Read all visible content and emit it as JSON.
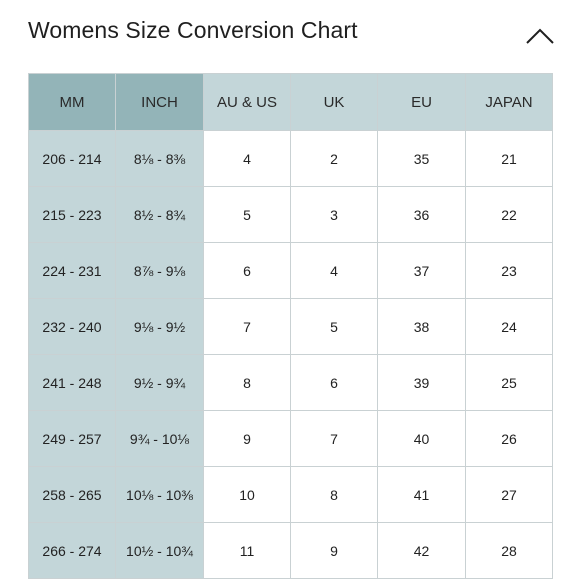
{
  "header": {
    "title": "Womens Size Conversion Chart",
    "collapse_icon": "chevron-up-icon"
  },
  "table": {
    "columns": [
      "MM",
      "INCH",
      "AU & US",
      "UK",
      "EU",
      "JAPAN"
    ],
    "rows": [
      {
        "mm": "206 - 214",
        "inch": "8⅛ - 8⅜",
        "au_us": "4",
        "uk": "2",
        "eu": "35",
        "japan": "21"
      },
      {
        "mm": "215 - 223",
        "inch": "8½ - 8¾",
        "au_us": "5",
        "uk": "3",
        "eu": "36",
        "japan": "22"
      },
      {
        "mm": "224 - 231",
        "inch": "8⅞ - 9⅛",
        "au_us": "6",
        "uk": "4",
        "eu": "37",
        "japan": "23"
      },
      {
        "mm": "232 - 240",
        "inch": "9⅛ - 9½",
        "au_us": "7",
        "uk": "5",
        "eu": "38",
        "japan": "24"
      },
      {
        "mm": "241 - 248",
        "inch": "9½ - 9¾",
        "au_us": "8",
        "uk": "6",
        "eu": "39",
        "japan": "25"
      },
      {
        "mm": "249 - 257",
        "inch": "9¾ - 10⅛",
        "au_us": "9",
        "uk": "7",
        "eu": "40",
        "japan": "26"
      },
      {
        "mm": "258 - 265",
        "inch": "10⅛ - 10⅜",
        "au_us": "10",
        "uk": "8",
        "eu": "41",
        "japan": "27"
      },
      {
        "mm": "266 - 274",
        "inch": "10½ - 10¾",
        "au_us": "11",
        "uk": "9",
        "eu": "42",
        "japan": "28"
      }
    ]
  },
  "colors": {
    "header_dark": "#93b4b8",
    "header_light": "#c3d6d9",
    "column_shade": "#c3d6d9",
    "border": "#c9d1d3"
  }
}
